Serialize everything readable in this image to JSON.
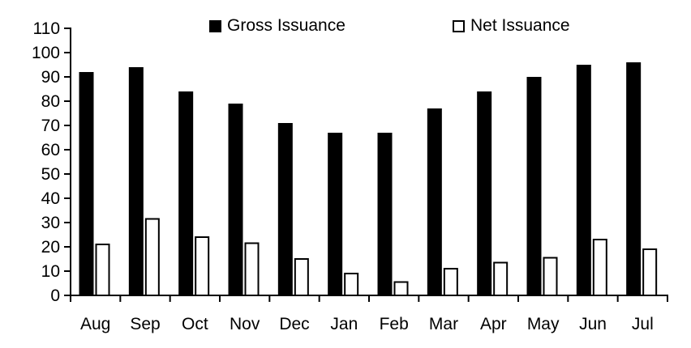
{
  "chart_data": {
    "type": "bar",
    "title": "",
    "xlabel": "",
    "ylabel": "",
    "categories": [
      "Aug",
      "Sep",
      "Oct",
      "Nov",
      "Dec",
      "Jan",
      "Feb",
      "Mar",
      "Apr",
      "May",
      "Jun",
      "Jul"
    ],
    "series": [
      {
        "name": "Gross Issuance",
        "style": "solid",
        "color": "#000000",
        "values": [
          92,
          94,
          84,
          79,
          71,
          67,
          67,
          77,
          84,
          90,
          95,
          96
        ]
      },
      {
        "name": "Net Issuance",
        "style": "outline",
        "color": "#ffffff",
        "border_color": "#000000",
        "values": [
          21,
          31.5,
          24,
          21.5,
          15,
          9,
          5.5,
          11,
          13.5,
          15.5,
          23,
          19
        ]
      }
    ],
    "ylim": [
      0,
      110
    ],
    "yticks": [
      0,
      10,
      20,
      30,
      40,
      50,
      60,
      70,
      80,
      90,
      100,
      110
    ],
    "grid": false,
    "legend_position": "top",
    "axis_color": "#000000",
    "background_color": "#ffffff"
  }
}
